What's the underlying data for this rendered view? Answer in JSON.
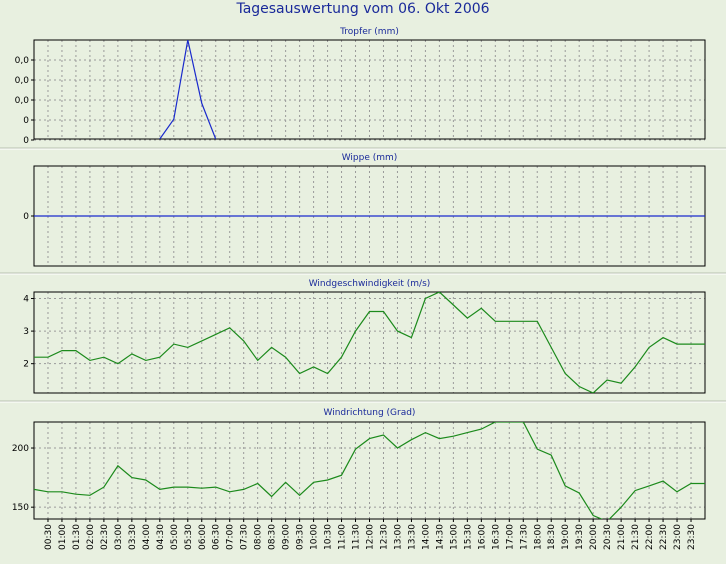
{
  "title": "Tagesauswertung vom 06. Okt 2006",
  "colors": {
    "background": "#e8f0e0",
    "blue": "#1a2acc",
    "green": "#1c8a1c",
    "grid": "#9a9a9a",
    "title": "#1a2a9a"
  },
  "x_ticks": [
    "00:30",
    "01:00",
    "01:30",
    "02:00",
    "02:30",
    "03:00",
    "03:30",
    "04:00",
    "04:30",
    "05:00",
    "05:30",
    "06:00",
    "06:30",
    "07:00",
    "07:30",
    "08:00",
    "08:30",
    "09:00",
    "09:30",
    "10:00",
    "10:30",
    "11:00",
    "11:30",
    "12:00",
    "12:30",
    "13:00",
    "13:30",
    "14:00",
    "14:30",
    "15:00",
    "15:30",
    "16:00",
    "16:30",
    "17:00",
    "17:30",
    "18:00",
    "18:30",
    "19:00",
    "19:30",
    "20:00",
    "20:30",
    "21:00",
    "21:30",
    "22:00",
    "22:30",
    "23:00",
    "23:30"
  ],
  "chart_data": [
    {
      "type": "line",
      "title": "Tropfer (mm)",
      "color": "blue",
      "ytick_labels": [
        "0,0",
        "0,0",
        "0,0",
        "0",
        "0"
      ],
      "ylim": [
        0,
        5
      ],
      "x": [
        4.5,
        5.0,
        5.5,
        6.0,
        6.5
      ],
      "values": [
        0,
        1,
        5,
        1.8,
        0
      ]
    },
    {
      "type": "line",
      "title": "Wippe (mm)",
      "color": "blue",
      "ytick_labels": [
        "0"
      ],
      "ylim": [
        -1,
        1
      ],
      "x": [
        0,
        24
      ],
      "values": [
        0,
        0
      ]
    },
    {
      "type": "line",
      "title": "Windgeschwindigkeit (m/s)",
      "color": "green",
      "ytick_labels": [
        "2",
        "3",
        "4"
      ],
      "ytick_values": [
        2,
        3,
        4
      ],
      "ylim": [
        1.1,
        4.2
      ],
      "x": [
        0,
        0.5,
        1,
        1.5,
        2,
        2.5,
        3,
        3.5,
        4,
        4.5,
        5,
        5.5,
        6,
        6.5,
        7,
        7.5,
        8,
        8.5,
        9,
        9.5,
        10,
        10.5,
        11,
        11.5,
        12,
        12.5,
        13,
        13.5,
        14,
        14.5,
        15,
        15.5,
        16,
        16.5,
        17,
        17.5,
        18,
        18.5,
        19,
        19.5,
        20,
        20.5,
        21,
        21.5,
        22,
        22.5,
        23,
        23.5,
        24
      ],
      "values": [
        2.2,
        2.2,
        2.4,
        2.4,
        2.1,
        2.2,
        2.0,
        2.3,
        2.1,
        2.2,
        2.6,
        2.5,
        2.7,
        2.9,
        3.1,
        2.7,
        2.1,
        2.5,
        2.2,
        1.7,
        1.9,
        1.7,
        2.2,
        3.0,
        3.6,
        3.6,
        3.0,
        2.8,
        4.0,
        4.2,
        3.8,
        3.4,
        3.7,
        3.3,
        3.3,
        3.3,
        3.3,
        2.5,
        1.7,
        1.3,
        1.1,
        1.5,
        1.4,
        1.9,
        2.5,
        2.8,
        2.6,
        2.6,
        2.6
      ]
    },
    {
      "type": "line",
      "title": "Windrichtung (Grad)",
      "color": "green",
      "ytick_labels": [
        "150",
        "200"
      ],
      "ytick_values": [
        150,
        200
      ],
      "ylim": [
        140,
        222
      ],
      "x": [
        0,
        0.5,
        1,
        1.5,
        2,
        2.5,
        3,
        3.5,
        4,
        4.5,
        5,
        5.5,
        6,
        6.5,
        7,
        7.5,
        8,
        8.5,
        9,
        9.5,
        10,
        10.5,
        11,
        11.5,
        12,
        12.5,
        13,
        13.5,
        14,
        14.5,
        15,
        15.5,
        16,
        16.5,
        17,
        17.5,
        18,
        18.5,
        19,
        19.5,
        20,
        20.5,
        21,
        21.5,
        22,
        22.5,
        23,
        23.5,
        24
      ],
      "values": [
        165,
        163,
        163,
        161,
        160,
        167,
        185,
        175,
        173,
        165,
        167,
        167,
        166,
        167,
        163,
        165,
        170,
        159,
        171,
        160,
        171,
        173,
        177,
        199,
        208,
        211,
        200,
        207,
        213,
        208,
        210,
        213,
        216,
        222,
        222,
        222,
        199,
        194,
        168,
        162,
        143,
        138,
        150,
        164,
        168,
        172,
        163,
        170,
        170
      ]
    }
  ]
}
